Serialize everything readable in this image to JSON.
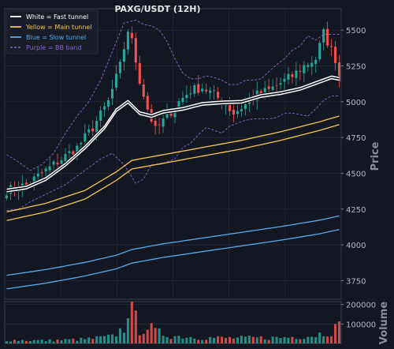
{
  "chart_data": {
    "type": "candlestick",
    "title": "PAXG/USDT (12H)",
    "price_axis_label": "Price",
    "volume_axis_label": "Volume",
    "price_ylim": [
      3620,
      5650
    ],
    "price_ticks": [
      3750,
      4000,
      4250,
      4500,
      4750,
      5000,
      5250,
      5500
    ],
    "volume_ylim": [
      0,
      215000
    ],
    "volume_ticks": [
      100000,
      200000
    ],
    "legend_position": "top-left",
    "grid": true,
    "legend": [
      {
        "key": "fast",
        "label": "White = Fast tunnel",
        "color": "#ffffff",
        "dash": false
      },
      {
        "key": "main",
        "label": "Yellow = Main tunnel",
        "color": "#f5c84c",
        "dash": false
      },
      {
        "key": "slow",
        "label": "Blue = Slow tunnel",
        "color": "#55aaee",
        "dash": false
      },
      {
        "key": "bb",
        "label": "Purple = BB band",
        "color": "#8a63d2",
        "dash": true
      }
    ],
    "colors": {
      "up": "#26a69a",
      "down": "#ef5350",
      "background": "#131722",
      "grid": "#2a2e39"
    },
    "candle_count": 86,
    "close_anchors": [
      [
        0,
        4380
      ],
      [
        5,
        4420
      ],
      [
        10,
        4520
      ],
      [
        14,
        4600
      ],
      [
        18,
        4680
      ],
      [
        22,
        4820
      ],
      [
        26,
        5000
      ],
      [
        29,
        5250
      ],
      [
        31,
        5500
      ],
      [
        32,
        5420
      ],
      [
        34,
        5150
      ],
      [
        36,
        4950
      ],
      [
        38,
        4800
      ],
      [
        41,
        4900
      ],
      [
        44,
        5000
      ],
      [
        47,
        5080
      ],
      [
        50,
        5100
      ],
      [
        53,
        5050
      ],
      [
        56,
        4980
      ],
      [
        58,
        4920
      ],
      [
        61,
        4980
      ],
      [
        64,
        5050
      ],
      [
        67,
        5080
      ],
      [
        70,
        5130
      ],
      [
        73,
        5180
      ],
      [
        76,
        5250
      ],
      [
        79,
        5300
      ],
      [
        81,
        5480
      ],
      [
        82,
        5420
      ],
      [
        84,
        5300
      ],
      [
        85,
        5150
      ]
    ],
    "volume_anchors": [
      [
        0,
        18000
      ],
      [
        10,
        15000
      ],
      [
        20,
        22000
      ],
      [
        27,
        35000
      ],
      [
        30,
        80000
      ],
      [
        31,
        195000
      ],
      [
        32,
        175000
      ],
      [
        33,
        120000
      ],
      [
        34,
        70000
      ],
      [
        36,
        90000
      ],
      [
        38,
        60000
      ],
      [
        42,
        40000
      ],
      [
        50,
        30000
      ],
      [
        60,
        28000
      ],
      [
        70,
        30000
      ],
      [
        78,
        40000
      ],
      [
        82,
        60000
      ],
      [
        85,
        85000
      ]
    ],
    "fast_tunnel": {
      "anchors": [
        [
          0,
          4380
        ],
        [
          5,
          4400
        ],
        [
          10,
          4460
        ],
        [
          15,
          4560
        ],
        [
          20,
          4680
        ],
        [
          25,
          4820
        ],
        [
          28,
          4940
        ],
        [
          31,
          5000
        ],
        [
          34,
          4920
        ],
        [
          37,
          4900
        ],
        [
          40,
          4930
        ],
        [
          45,
          4950
        ],
        [
          50,
          4985
        ],
        [
          55,
          4995
        ],
        [
          60,
          5000
        ],
        [
          65,
          5040
        ],
        [
          70,
          5060
        ],
        [
          75,
          5090
        ],
        [
          80,
          5140
        ],
        [
          83,
          5170
        ],
        [
          85,
          5160
        ]
      ],
      "gap": 18
    },
    "main_tunnel": {
      "anchors": [
        [
          0,
          4200
        ],
        [
          10,
          4260
        ],
        [
          20,
          4350
        ],
        [
          28,
          4480
        ],
        [
          32,
          4560
        ],
        [
          38,
          4590
        ],
        [
          50,
          4650
        ],
        [
          60,
          4700
        ],
        [
          70,
          4760
        ],
        [
          80,
          4830
        ],
        [
          85,
          4870
        ]
      ],
      "gap": 60
    },
    "slow_tunnel": {
      "anchors": [
        [
          0,
          3740
        ],
        [
          10,
          3780
        ],
        [
          20,
          3830
        ],
        [
          28,
          3880
        ],
        [
          32,
          3920
        ],
        [
          40,
          3960
        ],
        [
          50,
          4000
        ],
        [
          60,
          4040
        ],
        [
          70,
          4080
        ],
        [
          80,
          4125
        ],
        [
          85,
          4155
        ]
      ],
      "gap": 95
    },
    "bb_upper_anchors": [
      [
        0,
        4630
      ],
      [
        3,
        4580
      ],
      [
        6,
        4520
      ],
      [
        9,
        4560
      ],
      [
        12,
        4640
      ],
      [
        15,
        4780
      ],
      [
        18,
        4900
      ],
      [
        21,
        5000
      ],
      [
        24,
        5150
      ],
      [
        27,
        5350
      ],
      [
        30,
        5550
      ],
      [
        33,
        5570
      ],
      [
        35,
        5540
      ],
      [
        37,
        5530
      ],
      [
        39,
        5500
      ],
      [
        41,
        5420
      ],
      [
        43,
        5300
      ],
      [
        45,
        5200
      ],
      [
        47,
        5160
      ],
      [
        49,
        5160
      ],
      [
        51,
        5180
      ],
      [
        53,
        5170
      ],
      [
        55,
        5150
      ],
      [
        57,
        5120
      ],
      [
        59,
        5120
      ],
      [
        61,
        5150
      ],
      [
        63,
        5150
      ],
      [
        65,
        5160
      ],
      [
        67,
        5210
      ],
      [
        69,
        5260
      ],
      [
        71,
        5300
      ],
      [
        73,
        5360
      ],
      [
        75,
        5390
      ],
      [
        77,
        5460
      ],
      [
        79,
        5430
      ],
      [
        81,
        5470
      ],
      [
        83,
        5470
      ],
      [
        85,
        5470
      ]
    ],
    "bb_lower_anchors": [
      [
        0,
        4240
      ],
      [
        3,
        4250
      ],
      [
        6,
        4300
      ],
      [
        9,
        4340
      ],
      [
        12,
        4380
      ],
      [
        15,
        4420
      ],
      [
        18,
        4480
      ],
      [
        21,
        4540
      ],
      [
        24,
        4600
      ],
      [
        27,
        4640
      ],
      [
        30,
        4560
      ],
      [
        33,
        4430
      ],
      [
        35,
        4460
      ],
      [
        37,
        4560
      ],
      [
        39,
        4560
      ],
      [
        41,
        4580
      ],
      [
        43,
        4600
      ],
      [
        45,
        4680
      ],
      [
        47,
        4710
      ],
      [
        49,
        4770
      ],
      [
        51,
        4820
      ],
      [
        53,
        4800
      ],
      [
        55,
        4780
      ],
      [
        57,
        4830
      ],
      [
        59,
        4850
      ],
      [
        61,
        4870
      ],
      [
        63,
        4880
      ],
      [
        65,
        4880
      ],
      [
        67,
        4880
      ],
      [
        69,
        4890
      ],
      [
        71,
        4920
      ],
      [
        73,
        4920
      ],
      [
        75,
        4910
      ],
      [
        77,
        4900
      ],
      [
        79,
        4950
      ],
      [
        81,
        5010
      ],
      [
        83,
        5040
      ],
      [
        85,
        5040
      ]
    ]
  }
}
